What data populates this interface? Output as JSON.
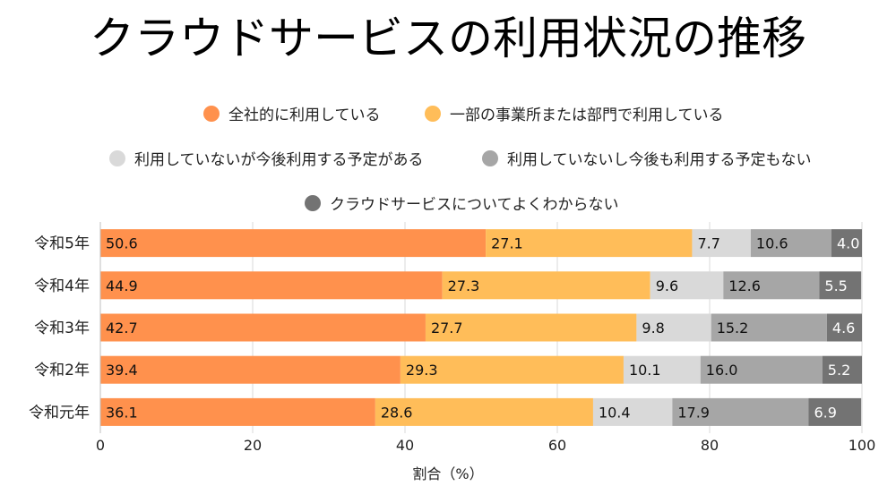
{
  "chart_data": {
    "type": "bar",
    "orientation": "horizontal",
    "stacked": true,
    "title": "クラウドサービスの利用状況の推移",
    "xlabel": "割合（%）",
    "ylabel": "",
    "xlim": [
      0,
      100
    ],
    "xticks": [
      0,
      20,
      40,
      60,
      80,
      100
    ],
    "grid": true,
    "legend_position": "top",
    "categories": [
      "令和5年",
      "令和4年",
      "令和3年",
      "令和2年",
      "令和元年"
    ],
    "series": [
      {
        "name": "全社的に利用している",
        "color": "#FF914D",
        "values": [
          50.6,
          44.9,
          42.7,
          39.4,
          36.1
        ]
      },
      {
        "name": "一部の事業所または部門で利用している",
        "color": "#FFBD59",
        "values": [
          27.1,
          27.3,
          27.7,
          29.3,
          28.6
        ]
      },
      {
        "name": "利用していないが今後利用する予定がある",
        "color": "#D9D9D9",
        "values": [
          7.7,
          9.6,
          9.8,
          10.1,
          10.4
        ]
      },
      {
        "name": "利用していないし今後も利用する予定もない",
        "color": "#A6A6A6",
        "values": [
          10.6,
          12.6,
          15.2,
          16.0,
          17.9
        ]
      },
      {
        "name": "クラウドサービスについてよくわからない",
        "color": "#737373",
        "values": [
          4.0,
          5.5,
          4.6,
          5.2,
          6.9
        ]
      }
    ]
  }
}
